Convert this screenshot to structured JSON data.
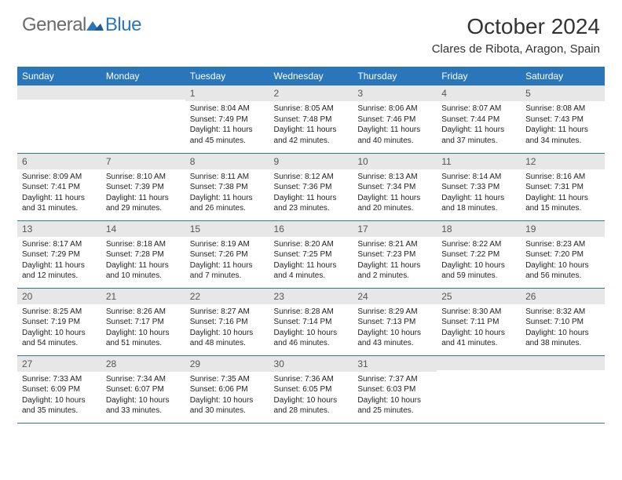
{
  "brand": {
    "part1": "General",
    "part2": "Blue"
  },
  "title": "October 2024",
  "location": "Clares de Ribota, Aragon, Spain",
  "colors": {
    "header_bg": "#2a76bb",
    "header_text": "#ffffff",
    "daynum_bg": "#e7e7e7",
    "daynum_text": "#555555",
    "cell_text": "#222222",
    "border": "#2a76bb",
    "logo_gray": "#6b6b6b",
    "logo_blue": "#2a76bb",
    "background": "#ffffff"
  },
  "typography": {
    "title_fontsize": 28,
    "location_fontsize": 15,
    "header_fontsize": 12,
    "daynum_fontsize": 12,
    "content_fontsize": 10,
    "logo_fontsize": 24
  },
  "weekdays": [
    "Sunday",
    "Monday",
    "Tuesday",
    "Wednesday",
    "Thursday",
    "Friday",
    "Saturday"
  ],
  "weeks": [
    [
      {
        "day": "",
        "lines": []
      },
      {
        "day": "",
        "lines": []
      },
      {
        "day": "1",
        "lines": [
          "Sunrise: 8:04 AM",
          "Sunset: 7:49 PM",
          "Daylight: 11 hours",
          "and 45 minutes."
        ]
      },
      {
        "day": "2",
        "lines": [
          "Sunrise: 8:05 AM",
          "Sunset: 7:48 PM",
          "Daylight: 11 hours",
          "and 42 minutes."
        ]
      },
      {
        "day": "3",
        "lines": [
          "Sunrise: 8:06 AM",
          "Sunset: 7:46 PM",
          "Daylight: 11 hours",
          "and 40 minutes."
        ]
      },
      {
        "day": "4",
        "lines": [
          "Sunrise: 8:07 AM",
          "Sunset: 7:44 PM",
          "Daylight: 11 hours",
          "and 37 minutes."
        ]
      },
      {
        "day": "5",
        "lines": [
          "Sunrise: 8:08 AM",
          "Sunset: 7:43 PM",
          "Daylight: 11 hours",
          "and 34 minutes."
        ]
      }
    ],
    [
      {
        "day": "6",
        "lines": [
          "Sunrise: 8:09 AM",
          "Sunset: 7:41 PM",
          "Daylight: 11 hours",
          "and 31 minutes."
        ]
      },
      {
        "day": "7",
        "lines": [
          "Sunrise: 8:10 AM",
          "Sunset: 7:39 PM",
          "Daylight: 11 hours",
          "and 29 minutes."
        ]
      },
      {
        "day": "8",
        "lines": [
          "Sunrise: 8:11 AM",
          "Sunset: 7:38 PM",
          "Daylight: 11 hours",
          "and 26 minutes."
        ]
      },
      {
        "day": "9",
        "lines": [
          "Sunrise: 8:12 AM",
          "Sunset: 7:36 PM",
          "Daylight: 11 hours",
          "and 23 minutes."
        ]
      },
      {
        "day": "10",
        "lines": [
          "Sunrise: 8:13 AM",
          "Sunset: 7:34 PM",
          "Daylight: 11 hours",
          "and 20 minutes."
        ]
      },
      {
        "day": "11",
        "lines": [
          "Sunrise: 8:14 AM",
          "Sunset: 7:33 PM",
          "Daylight: 11 hours",
          "and 18 minutes."
        ]
      },
      {
        "day": "12",
        "lines": [
          "Sunrise: 8:16 AM",
          "Sunset: 7:31 PM",
          "Daylight: 11 hours",
          "and 15 minutes."
        ]
      }
    ],
    [
      {
        "day": "13",
        "lines": [
          "Sunrise: 8:17 AM",
          "Sunset: 7:29 PM",
          "Daylight: 11 hours",
          "and 12 minutes."
        ]
      },
      {
        "day": "14",
        "lines": [
          "Sunrise: 8:18 AM",
          "Sunset: 7:28 PM",
          "Daylight: 11 hours",
          "and 10 minutes."
        ]
      },
      {
        "day": "15",
        "lines": [
          "Sunrise: 8:19 AM",
          "Sunset: 7:26 PM",
          "Daylight: 11 hours",
          "and 7 minutes."
        ]
      },
      {
        "day": "16",
        "lines": [
          "Sunrise: 8:20 AM",
          "Sunset: 7:25 PM",
          "Daylight: 11 hours",
          "and 4 minutes."
        ]
      },
      {
        "day": "17",
        "lines": [
          "Sunrise: 8:21 AM",
          "Sunset: 7:23 PM",
          "Daylight: 11 hours",
          "and 2 minutes."
        ]
      },
      {
        "day": "18",
        "lines": [
          "Sunrise: 8:22 AM",
          "Sunset: 7:22 PM",
          "Daylight: 10 hours",
          "and 59 minutes."
        ]
      },
      {
        "day": "19",
        "lines": [
          "Sunrise: 8:23 AM",
          "Sunset: 7:20 PM",
          "Daylight: 10 hours",
          "and 56 minutes."
        ]
      }
    ],
    [
      {
        "day": "20",
        "lines": [
          "Sunrise: 8:25 AM",
          "Sunset: 7:19 PM",
          "Daylight: 10 hours",
          "and 54 minutes."
        ]
      },
      {
        "day": "21",
        "lines": [
          "Sunrise: 8:26 AM",
          "Sunset: 7:17 PM",
          "Daylight: 10 hours",
          "and 51 minutes."
        ]
      },
      {
        "day": "22",
        "lines": [
          "Sunrise: 8:27 AM",
          "Sunset: 7:16 PM",
          "Daylight: 10 hours",
          "and 48 minutes."
        ]
      },
      {
        "day": "23",
        "lines": [
          "Sunrise: 8:28 AM",
          "Sunset: 7:14 PM",
          "Daylight: 10 hours",
          "and 46 minutes."
        ]
      },
      {
        "day": "24",
        "lines": [
          "Sunrise: 8:29 AM",
          "Sunset: 7:13 PM",
          "Daylight: 10 hours",
          "and 43 minutes."
        ]
      },
      {
        "day": "25",
        "lines": [
          "Sunrise: 8:30 AM",
          "Sunset: 7:11 PM",
          "Daylight: 10 hours",
          "and 41 minutes."
        ]
      },
      {
        "day": "26",
        "lines": [
          "Sunrise: 8:32 AM",
          "Sunset: 7:10 PM",
          "Daylight: 10 hours",
          "and 38 minutes."
        ]
      }
    ],
    [
      {
        "day": "27",
        "lines": [
          "Sunrise: 7:33 AM",
          "Sunset: 6:09 PM",
          "Daylight: 10 hours",
          "and 35 minutes."
        ]
      },
      {
        "day": "28",
        "lines": [
          "Sunrise: 7:34 AM",
          "Sunset: 6:07 PM",
          "Daylight: 10 hours",
          "and 33 minutes."
        ]
      },
      {
        "day": "29",
        "lines": [
          "Sunrise: 7:35 AM",
          "Sunset: 6:06 PM",
          "Daylight: 10 hours",
          "and 30 minutes."
        ]
      },
      {
        "day": "30",
        "lines": [
          "Sunrise: 7:36 AM",
          "Sunset: 6:05 PM",
          "Daylight: 10 hours",
          "and 28 minutes."
        ]
      },
      {
        "day": "31",
        "lines": [
          "Sunrise: 7:37 AM",
          "Sunset: 6:03 PM",
          "Daylight: 10 hours",
          "and 25 minutes."
        ]
      },
      {
        "day": "",
        "lines": []
      },
      {
        "day": "",
        "lines": []
      }
    ]
  ]
}
